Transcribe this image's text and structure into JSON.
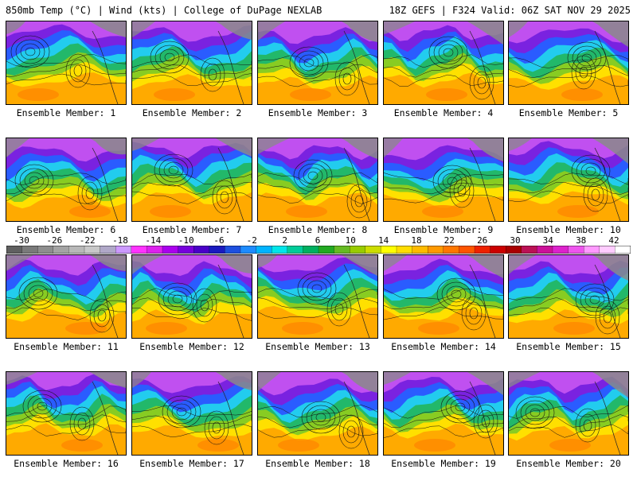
{
  "header": {
    "left": "850mb Temp (°C) | Wind (kts) | College of DuPage NEXLAB",
    "right": "18Z GEFS | F324 Valid: 06Z SAT NOV 29 2025"
  },
  "members": [
    {
      "caption": "Ensemble Member: 1"
    },
    {
      "caption": "Ensemble Member: 2"
    },
    {
      "caption": "Ensemble Member: 3"
    },
    {
      "caption": "Ensemble Member: 4"
    },
    {
      "caption": "Ensemble Member: 5"
    },
    {
      "caption": "Ensemble Member: 6"
    },
    {
      "caption": "Ensemble Member: 7"
    },
    {
      "caption": "Ensemble Member: 8"
    },
    {
      "caption": "Ensemble Member: 9"
    },
    {
      "caption": "Ensemble Member: 10"
    },
    {
      "caption": "Ensemble Member: 11"
    },
    {
      "caption": "Ensemble Member: 12"
    },
    {
      "caption": "Ensemble Member: 13"
    },
    {
      "caption": "Ensemble Member: 14"
    },
    {
      "caption": "Ensemble Member: 15"
    },
    {
      "caption": "Ensemble Member: 16"
    },
    {
      "caption": "Ensemble Member: 17"
    },
    {
      "caption": "Ensemble Member: 18"
    },
    {
      "caption": "Ensemble Member: 19"
    },
    {
      "caption": "Ensemble Member: 20"
    }
  ],
  "colorbar": {
    "labels": [
      "-30",
      "-26",
      "-22",
      "-18",
      "-14",
      "-10",
      "-6",
      "-2",
      "2",
      "6",
      "10",
      "14",
      "18",
      "22",
      "26",
      "30",
      "34",
      "38",
      "42"
    ],
    "colors": [
      "#606060",
      "#7a7a7a",
      "#8e8e8e",
      "#a4a4a4",
      "#b8b8b8",
      "#c8c8c8",
      "#b0a8c8",
      "#cc99ff",
      "#ff33ff",
      "#dd22ee",
      "#aa00ee",
      "#7700dd",
      "#4a00c8",
      "#1a1ac0",
      "#1e50e0",
      "#1e8cff",
      "#00b4ff",
      "#00e6ea",
      "#00cc99",
      "#00b060",
      "#22aa22",
      "#66bb22",
      "#99cc00",
      "#ccdd00",
      "#ffff00",
      "#ffdd00",
      "#ffbb00",
      "#ff9900",
      "#ff7700",
      "#ff5500",
      "#ee2200",
      "#cc0000",
      "#aa0000",
      "#bb1155",
      "#cc1199",
      "#dd22cc",
      "#ee55ee",
      "#ff99ff",
      "#ffccff",
      "#ffffff"
    ],
    "palette": {
      "land_cold": "#8a8a8a",
      "very_cold": "#c050f0",
      "cold": "#7a22e0",
      "cool": "#2a5cff",
      "chilly": "#22ccee",
      "mild": "#22b86a",
      "warm_green": "#88cc22",
      "yellow": "#ffe000",
      "orange": "#ffaa00",
      "deep_orange": "#ff8800"
    }
  }
}
